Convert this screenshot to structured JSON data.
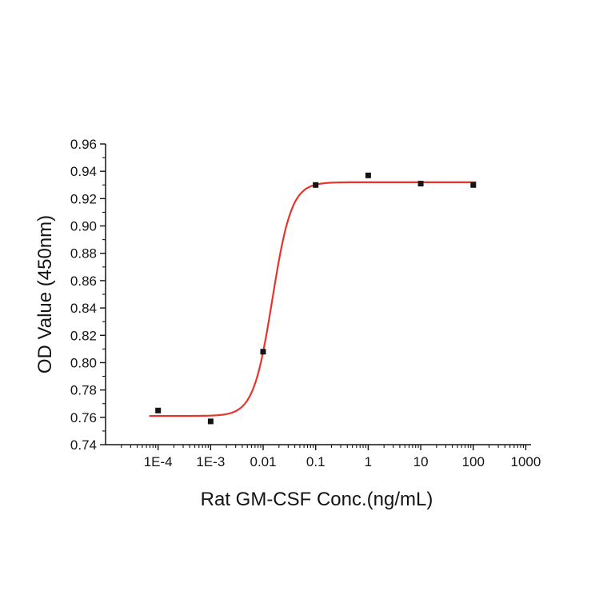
{
  "chart_data": {
    "type": "scatter",
    "title": "",
    "xlabel": "Rat GM-CSF Conc.(ng/mL)",
    "ylabel": "OD Value (450nm)",
    "x_scale": "log",
    "grid": false,
    "legend": null,
    "y_range": [
      0.74,
      0.96
    ],
    "y_tick_step": 0.02,
    "y_minor_step": 0.01,
    "y_tick_labels": [
      "0.74",
      "0.76",
      "0.78",
      "0.80",
      "0.82",
      "0.84",
      "0.86",
      "0.88",
      "0.90",
      "0.92",
      "0.94",
      "0.96"
    ],
    "x_ticks": [
      {
        "v": 0.0001,
        "label": "1E-4"
      },
      {
        "v": 0.001,
        "label": "1E-3"
      },
      {
        "v": 0.01,
        "label": "0.01"
      },
      {
        "v": 0.1,
        "label": "0.1"
      },
      {
        "v": 1,
        "label": "1"
      },
      {
        "v": 10,
        "label": "10"
      },
      {
        "v": 100,
        "label": "100"
      },
      {
        "v": 1000,
        "label": "1000"
      }
    ],
    "points": [
      {
        "x": 0.0001,
        "y": 0.765
      },
      {
        "x": 0.001,
        "y": 0.757
      },
      {
        "x": 0.01,
        "y": 0.808
      },
      {
        "x": 0.1,
        "y": 0.93
      },
      {
        "x": 1,
        "y": 0.937
      },
      {
        "x": 10,
        "y": 0.931
      },
      {
        "x": 100,
        "y": 0.93
      }
    ],
    "fit": {
      "model": "4PL",
      "bottom": 0.761,
      "top": 0.932,
      "ec50": 0.015,
      "hill": 2.4,
      "x_start": 7e-05,
      "x_end": 110
    },
    "colors": {
      "curve": "#e8342c",
      "marker": "#141414",
      "axis": "#141414",
      "background": "#ffffff"
    }
  }
}
